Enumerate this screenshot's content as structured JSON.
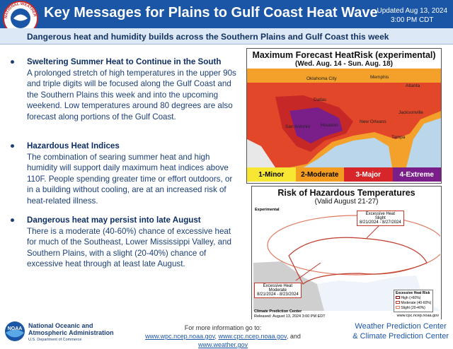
{
  "header": {
    "seal_text": "NATIONAL WEATHER SERVICE",
    "title": "Key Messages for Plains to Gulf Coast Heat Wave",
    "updated_line1": "Updated Aug 13, 2024",
    "updated_line2": "3:00 PM CDT"
  },
  "subtitle": "Dangerous heat and humidity builds across the Southern Plains and Gulf Coast this week",
  "bullets": [
    {
      "heading": "Sweltering Summer Heat to Continue in the South",
      "body": "A prolonged stretch of high temperatures in the upper 90s and triple digits will be focused along the Gulf Coast and the Southern Plains this week and into the upcoming weekend. Low temperatures around 80 degrees are also forecast along portions of the Gulf Coast."
    },
    {
      "heading": "Hazardous Heat Indices",
      "body": "The combination of searing summer heat and high humidity will support daily maximum heat indices above 110F. People spending greater time or effort outdoors, or in a building without cooling, are at an increased risk of heat-related illness."
    },
    {
      "heading": "Dangerous heat may persist into late August",
      "body": "There is a moderate (40-60%) chance of excessive heat for much of the Southeast, Lower Mississippi Valley, and Southern Plains, with a slight (20-40%) chance of excessive heat through at least late August."
    }
  ],
  "map1": {
    "title": "Maximum Forecast HeatRisk (experimental)",
    "subtitle": "(Wed. Aug. 14 - Sun. Aug. 18)",
    "cities": [
      "Oklahoma City",
      "Memphis",
      "Atlanta",
      "Dallas",
      "San Antonio",
      "Houston",
      "New Orleans",
      "Jacksonville",
      "Tampa"
    ],
    "legend": [
      "1-Minor",
      "2-Moderate",
      "3-Major",
      "4-Extreme"
    ]
  },
  "map2": {
    "title": "Risk of Hazardous Temperatures",
    "subtitle": "(Valid August 21-27)",
    "tag": "Experimental",
    "callouts": [
      {
        "title": "Excessive Heat",
        "level": "Slight",
        "dates": "8/21/2024 - 8/27/2024"
      },
      {
        "title": "Excessive Heat",
        "level": "Moderate",
        "dates": "8/21/2024 - 8/23/2024"
      }
    ],
    "center": "Climate Prediction Center",
    "released": "Released: August 13, 2024 3:00 PM EDT",
    "url": "www.cpc.ncep.noaa.gov",
    "legend_title": "Excessive Heat Risk",
    "legend": [
      "High (>60%)",
      "Moderate (40-60%)",
      "Slight (20-40%)"
    ]
  },
  "footer": {
    "logo": "NOAA",
    "org_line1": "National Oceanic and",
    "org_line2": "Atmospheric Administration",
    "dept": "U.S. Department of Commerce",
    "more": "For more information go to:",
    "links": [
      "www.wpc.ncep.noaa.gov",
      "www.cpc.ncep.noaa.gov",
      "www.weather.gov"
    ],
    "separators": [
      ", ",
      ", and "
    ],
    "right_line1": "Weather Prediction Center",
    "right_line2": "& Climate Prediction Center"
  }
}
